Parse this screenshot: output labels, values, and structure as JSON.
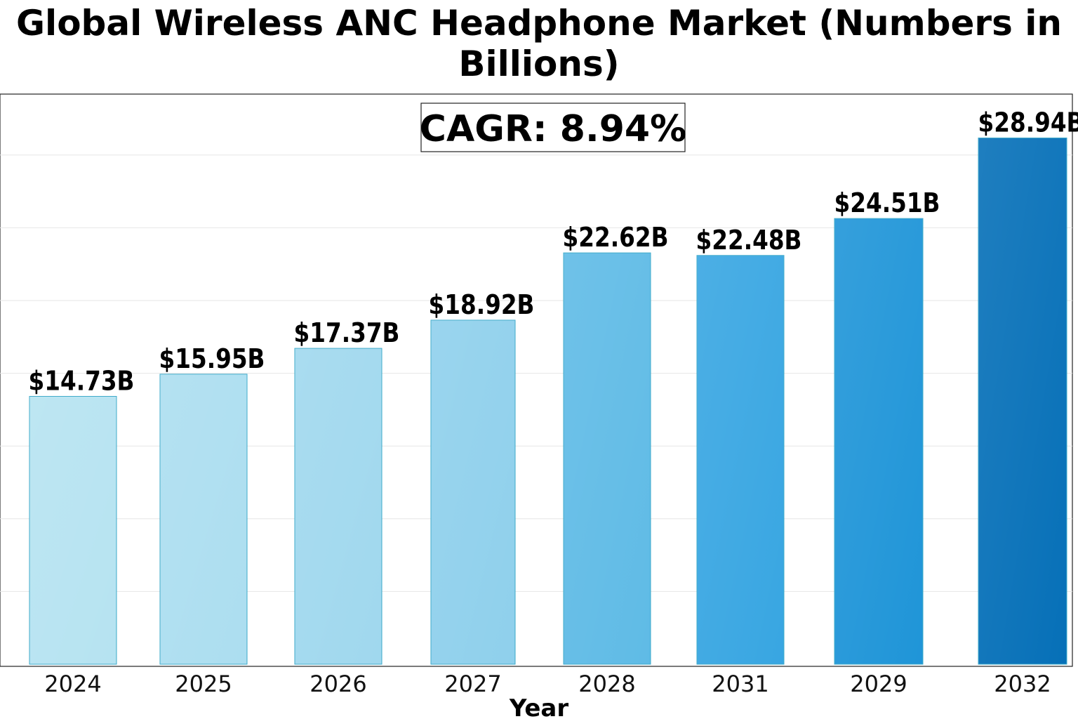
{
  "chart_data": {
    "type": "bar",
    "title": "Global Wireless ANC Headphone Market (Numbers in Billions)",
    "xlabel": "Year",
    "ylabel": "",
    "categories": [
      "2024",
      "2025",
      "2026",
      "2027",
      "2028",
      "2031",
      "2029",
      "2032"
    ],
    "values": [
      14.73,
      15.95,
      17.37,
      18.92,
      22.62,
      22.48,
      24.51,
      28.94
    ],
    "value_labels": [
      "$14.73B",
      "$15.95B",
      "$17.37B",
      "$18.92B",
      "$22.62B",
      "$22.48B",
      "$24.51B",
      "$28.94B"
    ],
    "ylim": [
      0,
      32
    ],
    "grid": true,
    "annotation": "CAGR: 8.94%",
    "colors": [
      "#b6e3f1",
      "#acdef0",
      "#a0d8ee",
      "#8fd0ec",
      "#5fbbe6",
      "#38a6e2",
      "#1f95d8",
      "#0670b8"
    ],
    "bar_edge_color": "#3aa8c8"
  }
}
